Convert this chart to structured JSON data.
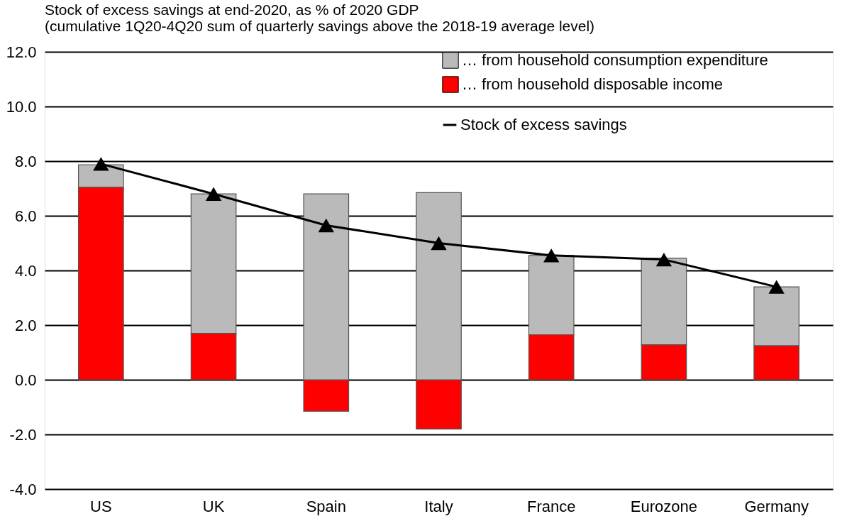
{
  "chart_data": {
    "type": "bar",
    "stacked": true,
    "title": [
      "Stock of excess savings at end-2020, as % of 2020 GDP",
      "(cumulative 1Q20-4Q20 sum of quarterly savings above the 2018-19 average level)"
    ],
    "categories": [
      "US",
      "UK",
      "Spain",
      "Italy",
      "France",
      "Eurozone",
      "Germany"
    ],
    "series": [
      {
        "name": "… from household  disposable income",
        "color": "#ff0000",
        "values": [
          7.05,
          1.7,
          -1.15,
          -1.8,
          1.65,
          1.28,
          1.25
        ]
      },
      {
        "name": "… from household  consumption expenditure",
        "color": "#bababa",
        "values": [
          0.82,
          5.1,
          6.8,
          6.85,
          2.9,
          3.17,
          2.15
        ]
      },
      {
        "name": "Stock of excess savings",
        "type": "line",
        "color": "#000000",
        "marker": "triangle",
        "values": [
          7.9,
          6.8,
          5.65,
          5.0,
          4.55,
          4.4,
          3.4
        ]
      }
    ],
    "ylim": [
      -4,
      12
    ],
    "yticks": [
      {
        "value": -4,
        "label": "-4.0"
      },
      {
        "value": -2,
        "label": "-2.0"
      },
      {
        "value": 0,
        "label": "0.0"
      },
      {
        "value": 2,
        "label": "2.0"
      },
      {
        "value": 4,
        "label": "4.0"
      },
      {
        "value": 6,
        "label": "6.0"
      },
      {
        "value": 8,
        "label": "8.0"
      },
      {
        "value": 10,
        "label": "10.0"
      },
      {
        "value": 12,
        "label": "12.0"
      }
    ],
    "grid": "y",
    "legend": "top right"
  }
}
